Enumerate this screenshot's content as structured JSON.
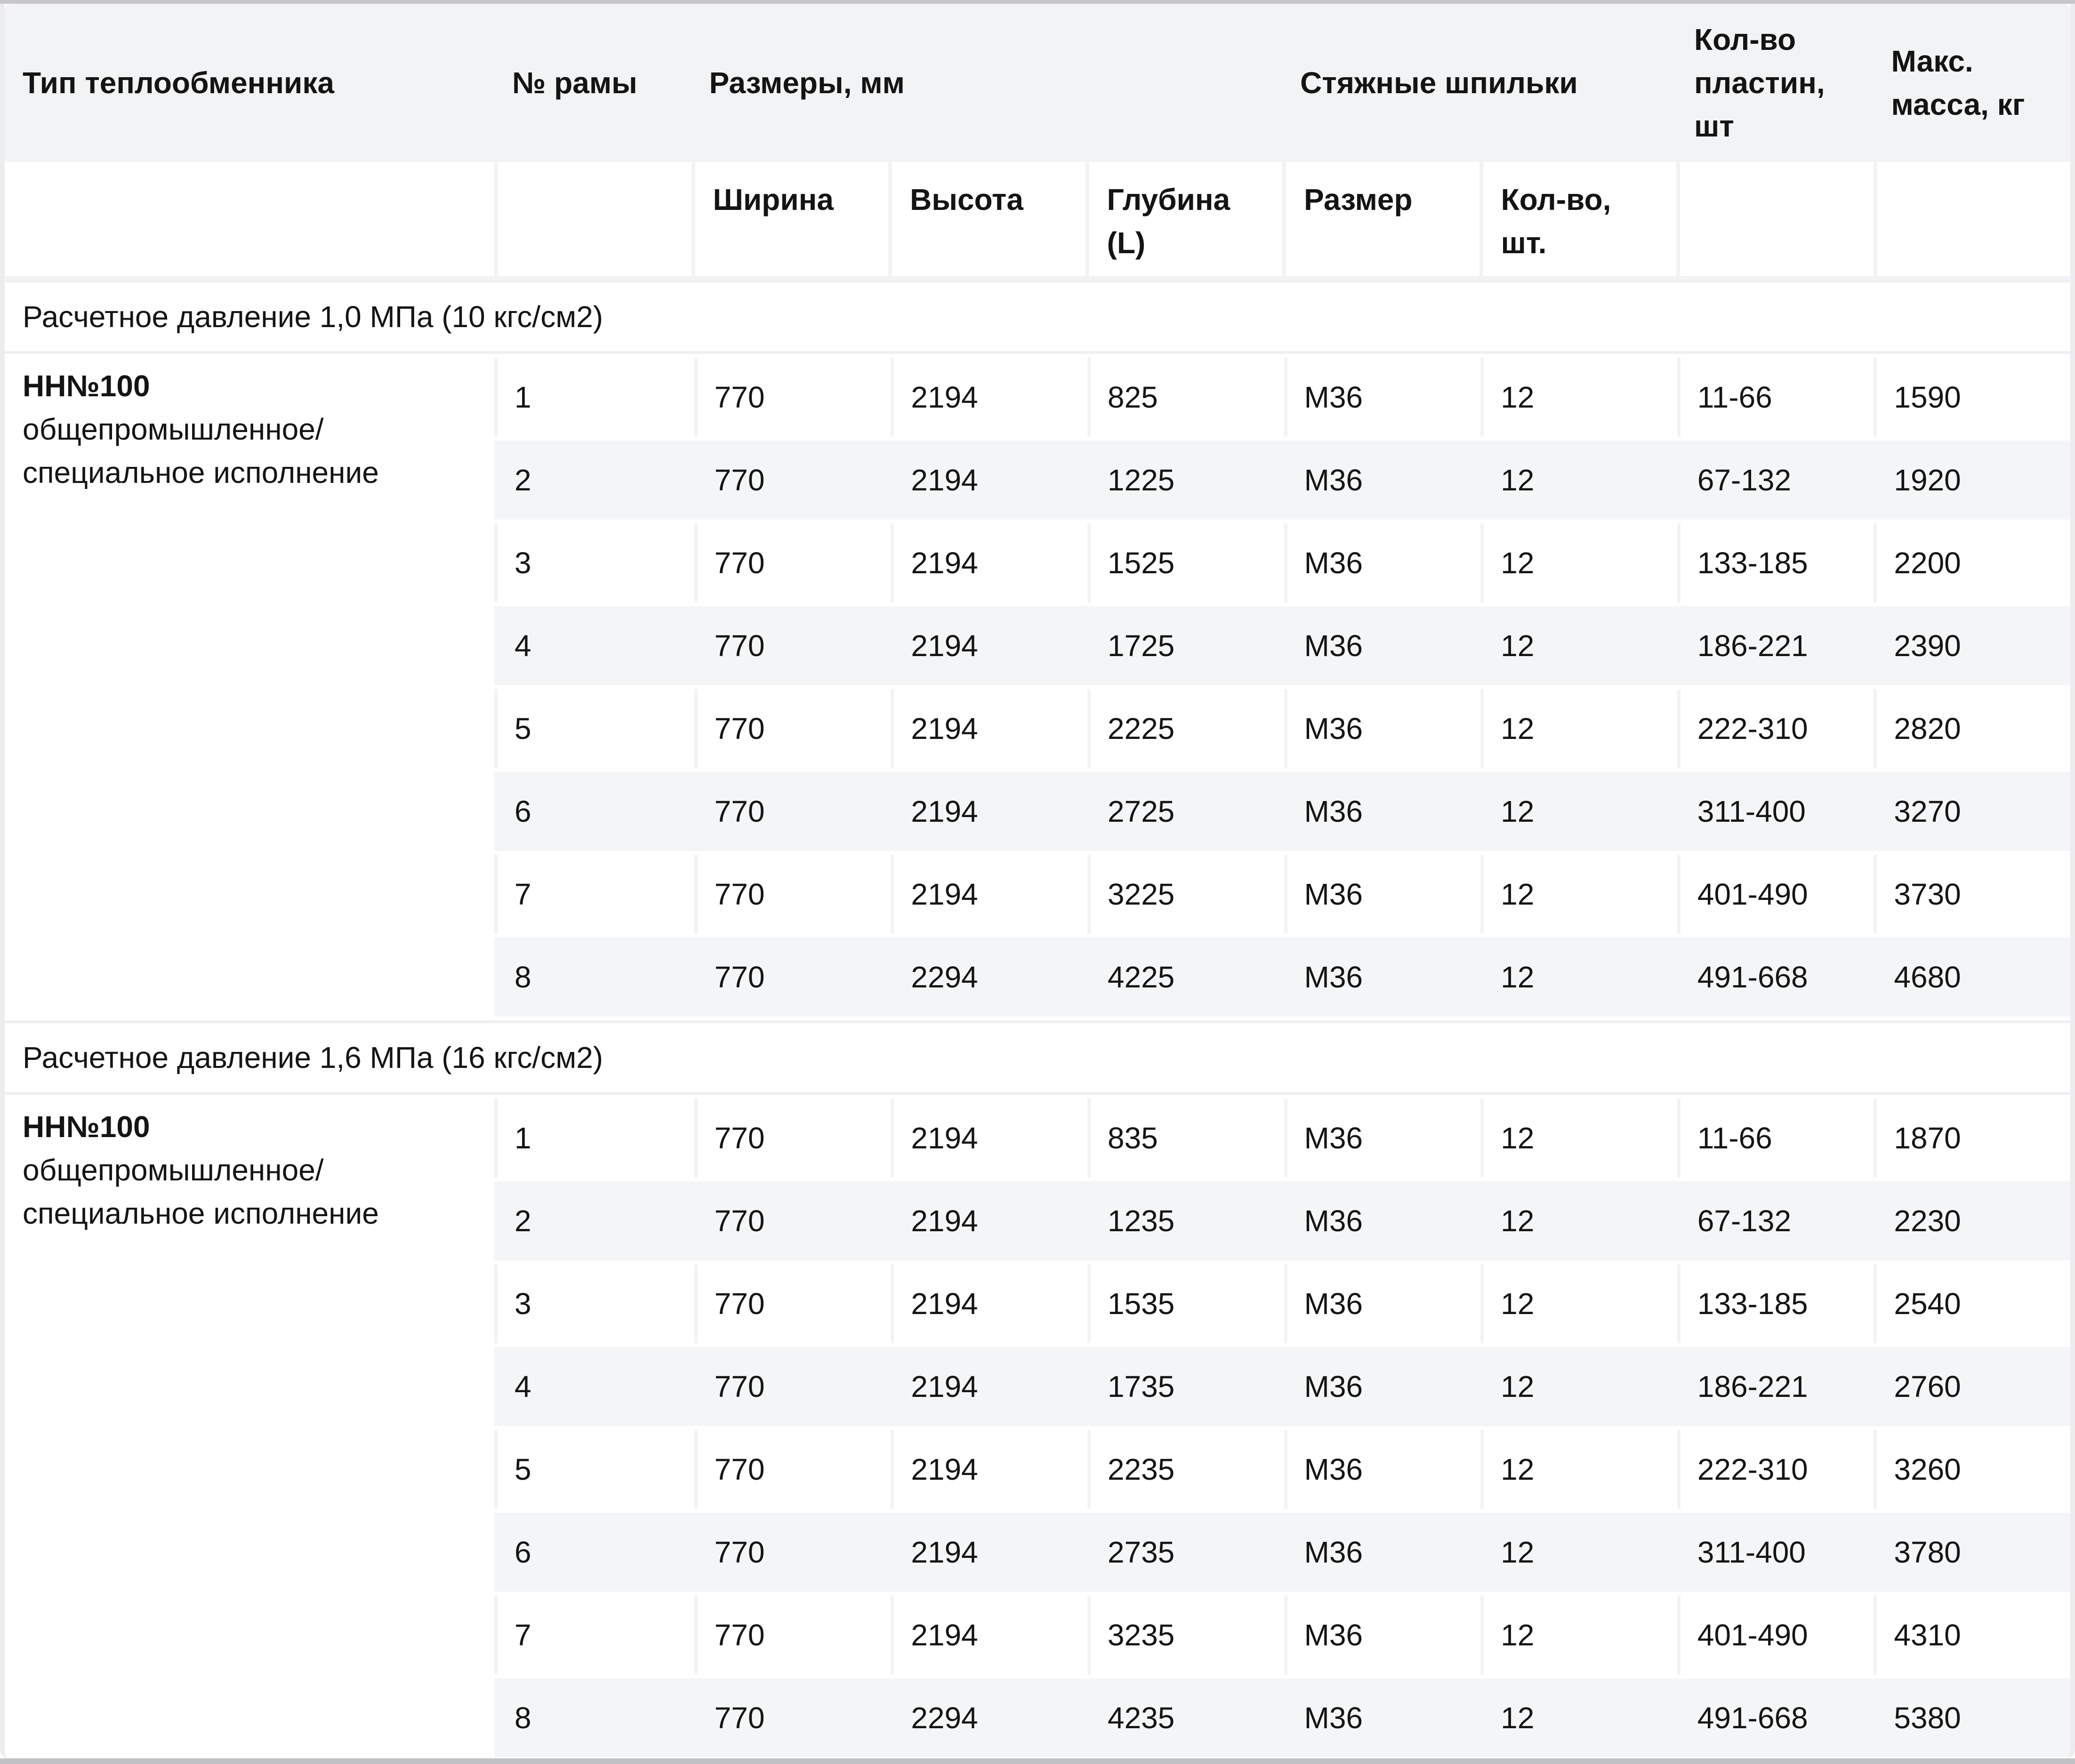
{
  "table": {
    "header": {
      "type": "Тип теплообменника",
      "frame": "№ рамы",
      "dimensions_group": "Размеры, мм",
      "studs_group": "Стяжные шпильки",
      "plates": "Кол-во пластин, шт",
      "max_mass": "Макс. масса, кг",
      "sub": {
        "width": "Ширина",
        "height": "Высота",
        "depth": "Глубина (L)",
        "size": "Размер",
        "qty": "Кол-во, шт."
      }
    },
    "sections": [
      {
        "title": "Расчетное давление 1,0 МПа (10 кгс/см2)",
        "exchanger": {
          "name": "НН№100",
          "desc_line1": "общепромышленное/",
          "desc_line2": "специальное исполнение"
        },
        "rows": [
          [
            "1",
            "770",
            "2194",
            "825",
            "М36",
            "12",
            "11-66",
            "1590"
          ],
          [
            "2",
            "770",
            "2194",
            "1225",
            "М36",
            "12",
            "67-132",
            "1920"
          ],
          [
            "3",
            "770",
            "2194",
            "1525",
            "М36",
            "12",
            "133-185",
            "2200"
          ],
          [
            "4",
            "770",
            "2194",
            "1725",
            "М36",
            "12",
            "186-221",
            "2390"
          ],
          [
            "5",
            "770",
            "2194",
            "2225",
            "М36",
            "12",
            "222-310",
            "2820"
          ],
          [
            "6",
            "770",
            "2194",
            "2725",
            "М36",
            "12",
            "311-400",
            "3270"
          ],
          [
            "7",
            "770",
            "2194",
            "3225",
            "М36",
            "12",
            "401-490",
            "3730"
          ],
          [
            "8",
            "770",
            "2294",
            "4225",
            "М36",
            "12",
            "491-668",
            "4680"
          ]
        ]
      },
      {
        "title": "Расчетное давление 1,6 МПа (16 кгс/см2)",
        "exchanger": {
          "name": "НН№100",
          "desc_line1": "общепромышленное/",
          "desc_line2": "специальное исполнение"
        },
        "rows": [
          [
            "1",
            "770",
            "2194",
            "835",
            "М36",
            "12",
            "11-66",
            "1870"
          ],
          [
            "2",
            "770",
            "2194",
            "1235",
            "М36",
            "12",
            "67-132",
            "2230"
          ],
          [
            "3",
            "770",
            "2194",
            "1535",
            "М36",
            "12",
            "133-185",
            "2540"
          ],
          [
            "4",
            "770",
            "2194",
            "1735",
            "М36",
            "12",
            "186-221",
            "2760"
          ],
          [
            "5",
            "770",
            "2194",
            "2235",
            "М36",
            "12",
            "222-310",
            "3260"
          ],
          [
            "6",
            "770",
            "2194",
            "2735",
            "М36",
            "12",
            "311-400",
            "3780"
          ],
          [
            "7",
            "770",
            "2194",
            "3235",
            "М36",
            "12",
            "401-490",
            "4310"
          ],
          [
            "8",
            "770",
            "2294",
            "4235",
            "М36",
            "12",
            "491-668",
            "5380"
          ]
        ]
      }
    ]
  }
}
